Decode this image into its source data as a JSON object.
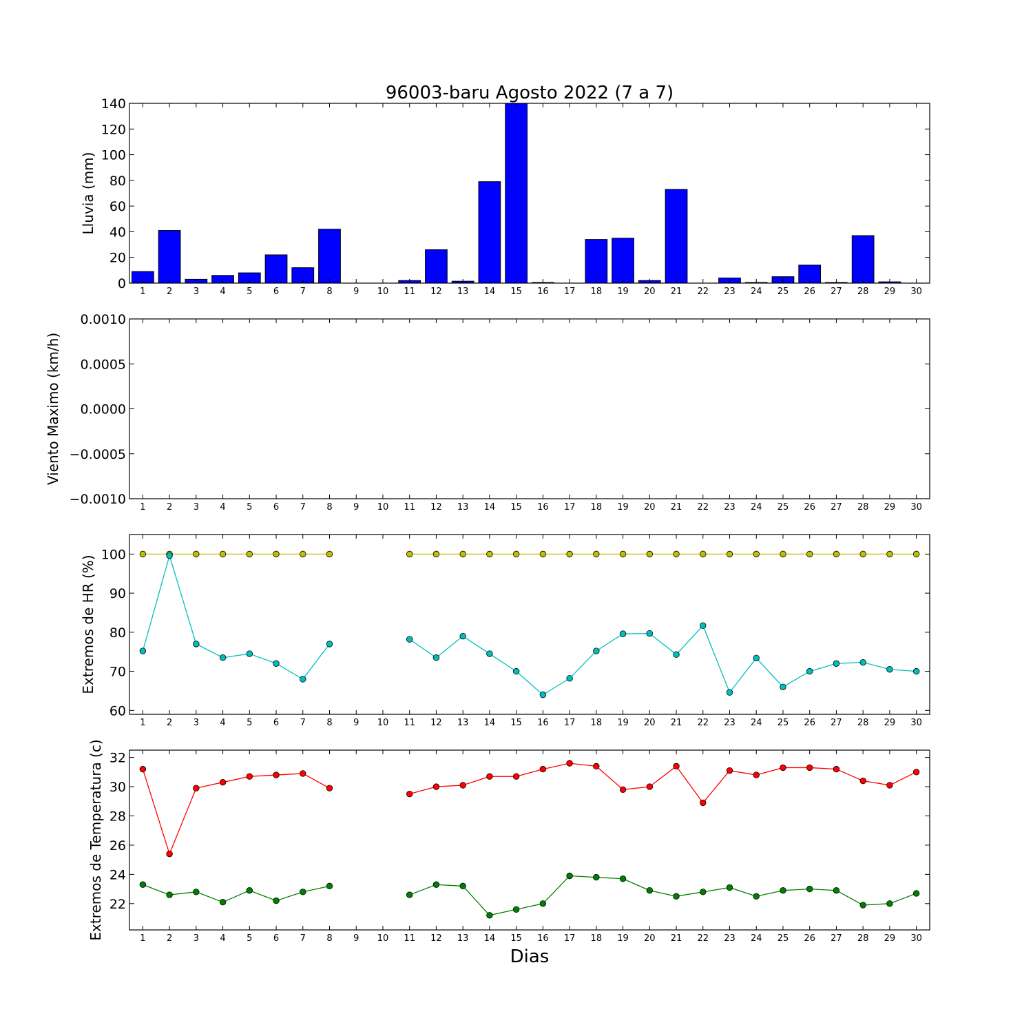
{
  "title": "96003-baru Agosto 2022  (7 a 7)",
  "xlabel": "Dias",
  "chart_data": [
    {
      "type": "bar",
      "ylabel": "Lluvia (mm)",
      "ylim": [
        0,
        140
      ],
      "yticks": [
        "0",
        "20",
        "40",
        "60",
        "80",
        "100",
        "120",
        "140"
      ],
      "categories": [
        1,
        2,
        3,
        4,
        5,
        6,
        7,
        8,
        9,
        10,
        11,
        12,
        13,
        14,
        15,
        16,
        17,
        18,
        19,
        20,
        21,
        22,
        23,
        24,
        25,
        26,
        27,
        28,
        29,
        30
      ],
      "values": [
        9,
        41,
        3,
        6,
        8,
        22,
        12,
        42,
        0,
        0,
        2,
        26,
        1.5,
        79,
        140,
        0.5,
        0,
        34,
        35,
        2,
        73,
        0,
        4,
        0.5,
        5,
        14,
        0.5,
        37,
        1,
        0
      ],
      "color": "#0000ff"
    },
    {
      "type": "line",
      "ylabel": "Viento Maximo (km/h)",
      "ylim": [
        -0.001,
        0.001
      ],
      "yticks": [
        "0.0010",
        "0.0005",
        "0.0000",
        "−0.0005",
        "−0.0010"
      ],
      "series": []
    },
    {
      "type": "line",
      "ylabel": "Extremos de HR (%)",
      "ylim": [
        59,
        105
      ],
      "yticks": [
        "60",
        "70",
        "80",
        "90",
        "100"
      ],
      "series": [
        {
          "color": "#bfbf00",
          "values": [
            100,
            100,
            100,
            100,
            100,
            100,
            100,
            100,
            null,
            null,
            100,
            100,
            100,
            100,
            100,
            100,
            100,
            100,
            100,
            100,
            100,
            100,
            100,
            100,
            100,
            100,
            100,
            100,
            100,
            100
          ]
        },
        {
          "color": "#00bfbf",
          "values": [
            75.2,
            99.6,
            77,
            73.5,
            74.5,
            72,
            68,
            77,
            null,
            null,
            78.2,
            73.5,
            79,
            74.5,
            70,
            64,
            68.2,
            75.2,
            79.6,
            79.7,
            74.3,
            81.7,
            64.6,
            73.4,
            66,
            70,
            72,
            72.3,
            70.5,
            70
          ]
        }
      ]
    },
    {
      "type": "line",
      "ylabel": "Extremos de Temperatura (c)",
      "ylim": [
        20.2,
        32.5
      ],
      "yticks": [
        "22",
        "24",
        "26",
        "28",
        "30",
        "32"
      ],
      "series": [
        {
          "color": "#ff0000",
          "values": [
            31.2,
            25.4,
            29.9,
            30.3,
            30.7,
            30.8,
            30.9,
            29.9,
            null,
            null,
            29.5,
            30,
            30.1,
            30.7,
            30.7,
            31.2,
            31.6,
            31.4,
            29.8,
            30,
            31.4,
            28.9,
            31.1,
            30.8,
            31.3,
            31.3,
            31.2,
            30.4,
            30.1,
            31
          ]
        },
        {
          "color": "#008000",
          "values": [
            23.3,
            22.6,
            22.8,
            22.1,
            22.9,
            22.2,
            22.8,
            23.2,
            null,
            null,
            22.6,
            23.3,
            23.2,
            21.2,
            21.6,
            22,
            23.9,
            23.8,
            23.7,
            22.9,
            22.5,
            22.8,
            23.1,
            22.5,
            22.9,
            23,
            22.9,
            21.9,
            22,
            22.7
          ]
        }
      ]
    }
  ]
}
